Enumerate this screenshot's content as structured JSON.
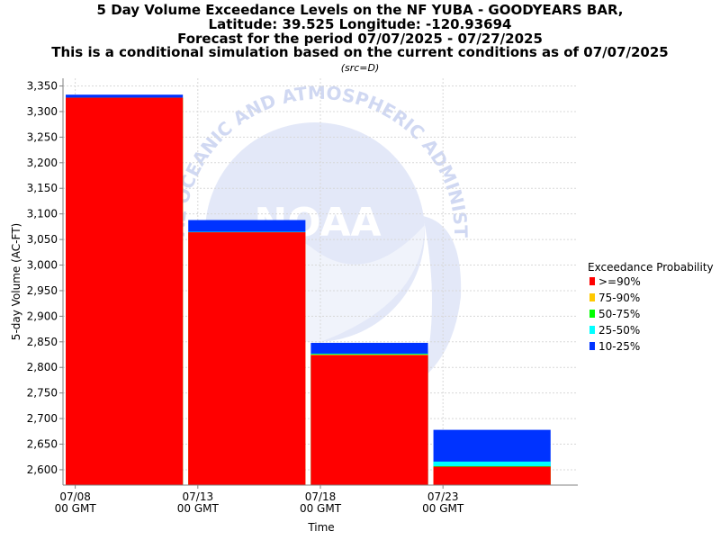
{
  "chart_data": {
    "type": "bar",
    "title_lines": [
      "5 Day Volume Exceedance Levels on the NF YUBA - GOODYEARS BAR,",
      "Latitude: 39.525 Longitude: -120.93694",
      "Forecast for the period 07/07/2025 - 07/27/2025",
      "This is a conditional simulation based on the current conditions as of 07/07/2025"
    ],
    "subtitle": "(src=D)",
    "xlabel": "Time",
    "ylabel": "5-day Volume (AC-FT)",
    "ylim": [
      2570,
      3365
    ],
    "yticks": [
      2600,
      2650,
      2700,
      2750,
      2800,
      2850,
      2900,
      2950,
      3000,
      3050,
      3100,
      3150,
      3200,
      3250,
      3300,
      3350
    ],
    "ytick_labels": [
      "2,600",
      "2,650",
      "2,700",
      "2,750",
      "2,800",
      "2,850",
      "2,900",
      "2,950",
      "3,000",
      "3,050",
      "3,100",
      "3,150",
      "3,200",
      "3,250",
      "3,300",
      "3,350"
    ],
    "xlim": [
      "07/07/2025 12:00",
      "07/28/2025 12:00"
    ],
    "xticks": [
      {
        "date": "07/08/2025",
        "line1": "07/08",
        "line2": "00 GMT"
      },
      {
        "date": "07/13/2025",
        "line1": "07/13",
        "line2": "00 GMT"
      },
      {
        "date": "07/18/2025",
        "line1": "07/18",
        "line2": "00 GMT"
      },
      {
        "date": "07/23/2025",
        "line1": "07/23",
        "line2": "00 GMT"
      }
    ],
    "grid": true,
    "legend_title": "Exceedance Probability",
    "legend_position": "right",
    "series": [
      {
        "name": ">=90%",
        "color": "#ff0000"
      },
      {
        "name": "75-90%",
        "color": "#ffc800"
      },
      {
        "name": "50-75%",
        "color": "#00ff00"
      },
      {
        "name": "25-50%",
        "color": "#00ffff"
      },
      {
        "name": "10-25%",
        "color": "#0033ff"
      }
    ],
    "bars": [
      {
        "start": "07/07/2025 12:00",
        "end": "07/12/2025 12:00",
        "levels": [
          3327,
          3327,
          3327,
          3327,
          3333
        ]
      },
      {
        "start": "07/12/2025 12:00",
        "end": "07/17/2025 12:00",
        "levels": [
          3064,
          3064,
          3064,
          3065,
          3088
        ]
      },
      {
        "start": "07/17/2025 12:00",
        "end": "07/22/2025 12:00",
        "levels": [
          2824,
          2825,
          2826,
          2827,
          2848
        ]
      },
      {
        "start": "07/22/2025 12:00",
        "end": "07/27/2025 12:00",
        "levels": [
          2606,
          2606,
          2607,
          2616,
          2678
        ]
      }
    ]
  },
  "watermark": {
    "agency_text": "NATIONAL OCEANIC AND ATMOSPHERIC ADMINISTRATION",
    "logo_text": "NOAA",
    "color": "#c8d2f0"
  }
}
